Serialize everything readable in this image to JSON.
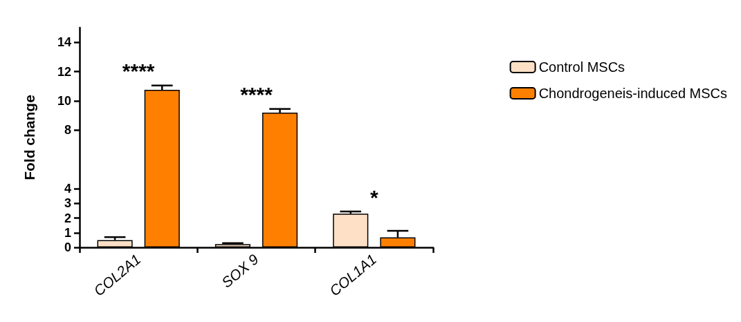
{
  "chart_data": {
    "type": "bar",
    "ylabel": "Fold change",
    "categories": [
      "COL2A1",
      "SOX 9",
      "COL1A1"
    ],
    "series": [
      {
        "name": "Control MSCs",
        "color": "#fde0c5",
        "values": [
          0.5,
          0.22,
          2.3
        ],
        "errors": [
          [
            0.5,
            0.7
          ],
          [
            0.22,
            0.29
          ],
          [
            2.3,
            2.45
          ]
        ]
      },
      {
        "name": "Chondrogeneis-induced MSCs",
        "color": "#ff8000",
        "values": [
          10.75,
          9.2,
          0.68
        ],
        "errors": [
          [
            10.75,
            11.05
          ],
          [
            9.2,
            9.45
          ],
          [
            0.68,
            1.13
          ]
        ]
      }
    ],
    "ylim": [
      0,
      15
    ],
    "yticks": [
      0,
      1,
      2,
      3,
      4,
      8,
      10,
      12,
      14
    ],
    "grid": false,
    "legend": "right",
    "annotations": [
      "****",
      "****",
      "*"
    ]
  }
}
